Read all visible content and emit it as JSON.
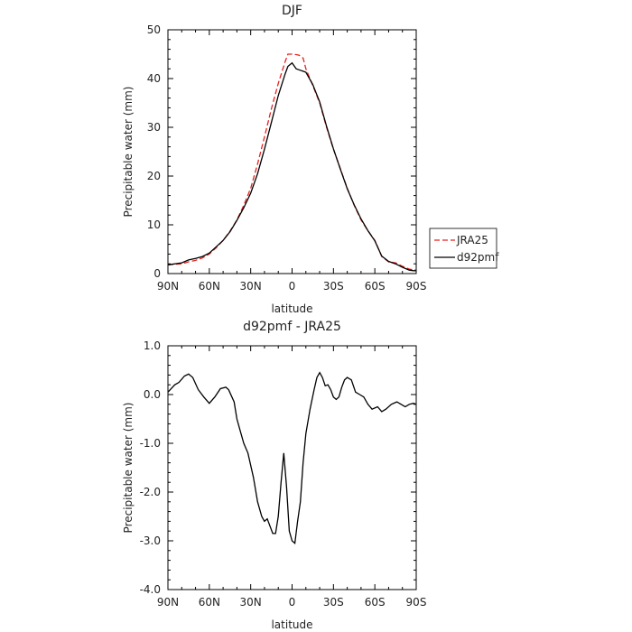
{
  "chart_data": [
    {
      "type": "line",
      "title": "DJF",
      "xlabel": "latitude",
      "ylabel": "Precipitable water (mm)",
      "x_ticks": [
        "90N",
        "60N",
        "30N",
        "0",
        "30S",
        "60S",
        "90S"
      ],
      "x_tick_values": [
        90,
        60,
        30,
        0,
        -30,
        -60,
        -90
      ],
      "xlim": [
        90,
        -90
      ],
      "ylim": [
        0,
        50
      ],
      "y_ticks": [
        "0",
        "10",
        "20",
        "30",
        "40",
        "50"
      ],
      "y_tick_values": [
        0,
        10,
        20,
        30,
        40,
        50
      ],
      "grid": false,
      "legend_position": "right",
      "series": [
        {
          "name": "JRA25",
          "color": "#e8201c",
          "dash": true,
          "x": [
            90,
            80,
            75,
            70,
            65,
            60,
            55,
            50,
            45,
            40,
            35,
            30,
            25,
            20,
            15,
            10,
            5,
            3,
            0,
            -3,
            -5,
            -8,
            -10,
            -15,
            -20,
            -25,
            -30,
            -35,
            -40,
            -45,
            -50,
            -55,
            -60,
            -65,
            -70,
            -75,
            -80,
            -85,
            -88,
            -90
          ],
          "y": [
            1.8,
            2.0,
            2.4,
            2.7,
            3.2,
            4.0,
            5.3,
            6.8,
            8.7,
            11.0,
            14.0,
            17.5,
            22.5,
            28.0,
            33.8,
            39.0,
            43.5,
            45.0,
            45.0,
            44.9,
            44.8,
            44.2,
            42.0,
            38.6,
            35.0,
            30.0,
            25.5,
            21.5,
            17.5,
            14.0,
            11.0,
            8.8,
            6.8,
            3.5,
            2.4,
            2.2,
            1.5,
            0.9,
            0.8,
            0.8
          ]
        },
        {
          "name": "d92pmf",
          "color": "#000000",
          "dash": false,
          "x": [
            90,
            80,
            75,
            70,
            65,
            60,
            55,
            50,
            45,
            40,
            35,
            30,
            25,
            20,
            15,
            10,
            5,
            3,
            0,
            -3,
            -5,
            -8,
            -10,
            -15,
            -20,
            -25,
            -30,
            -35,
            -40,
            -45,
            -50,
            -55,
            -60,
            -65,
            -70,
            -75,
            -80,
            -85,
            -88,
            -90
          ],
          "y": [
            1.8,
            2.2,
            2.8,
            3.1,
            3.5,
            4.2,
            5.5,
            6.8,
            8.6,
            10.9,
            13.5,
            16.5,
            20.5,
            25.5,
            31.0,
            36.5,
            41.0,
            42.5,
            43.2,
            42.0,
            41.8,
            41.5,
            41.3,
            38.8,
            35.2,
            30.2,
            25.6,
            21.4,
            17.4,
            14.1,
            11.2,
            8.8,
            6.7,
            3.6,
            2.5,
            2.0,
            1.3,
            0.7,
            0.6,
            0.6
          ]
        }
      ]
    },
    {
      "type": "line",
      "title": "d92pmf - JRA25",
      "xlabel": "latitude",
      "ylabel": "Precipitable water (mm)",
      "x_ticks": [
        "90N",
        "60N",
        "30N",
        "0",
        "30S",
        "60S",
        "90S"
      ],
      "x_tick_values": [
        90,
        60,
        30,
        0,
        -30,
        -60,
        -90
      ],
      "xlim": [
        90,
        -90
      ],
      "ylim": [
        -4.0,
        1.0
      ],
      "y_ticks": [
        "-4.0",
        "-3.0",
        "-2.0",
        "-1.0",
        "0.0",
        "1.0"
      ],
      "y_tick_values": [
        -4,
        -3,
        -2,
        -1,
        0,
        1
      ],
      "grid": false,
      "series": [
        {
          "name": "",
          "color": "#000000",
          "dash": false,
          "x": [
            90,
            85,
            82,
            78,
            75,
            72,
            68,
            64,
            60,
            56,
            52,
            48,
            46,
            42,
            40,
            38,
            35,
            32,
            28,
            25,
            22,
            20,
            18,
            14,
            12,
            10,
            8,
            6,
            4,
            2,
            0,
            -2,
            -4,
            -6,
            -8,
            -10,
            -13,
            -16,
            -18,
            -20,
            -22,
            -24,
            -26,
            -28,
            -30,
            -32,
            -34,
            -36,
            -38,
            -40,
            -43,
            -46,
            -49,
            -52,
            -55,
            -58,
            -62,
            -65,
            -68,
            -72,
            -76,
            -79,
            -82,
            -85,
            -88,
            -90
          ],
          "y": [
            0.05,
            0.2,
            0.25,
            0.38,
            0.42,
            0.35,
            0.1,
            -0.05,
            -0.18,
            -0.05,
            0.12,
            0.15,
            0.1,
            -0.15,
            -0.5,
            -0.7,
            -1.0,
            -1.2,
            -1.7,
            -2.2,
            -2.5,
            -2.6,
            -2.55,
            -2.85,
            -2.85,
            -2.5,
            -1.8,
            -1.2,
            -1.9,
            -2.8,
            -3.0,
            -3.05,
            -2.6,
            -2.2,
            -1.4,
            -0.8,
            -0.3,
            0.1,
            0.35,
            0.45,
            0.35,
            0.18,
            0.2,
            0.1,
            -0.05,
            -0.1,
            -0.05,
            0.15,
            0.3,
            0.35,
            0.3,
            0.05,
            0.0,
            -0.05,
            -0.2,
            -0.3,
            -0.25,
            -0.35,
            -0.3,
            -0.2,
            -0.15,
            -0.2,
            -0.25,
            -0.2,
            -0.18,
            -0.2
          ]
        }
      ]
    }
  ]
}
